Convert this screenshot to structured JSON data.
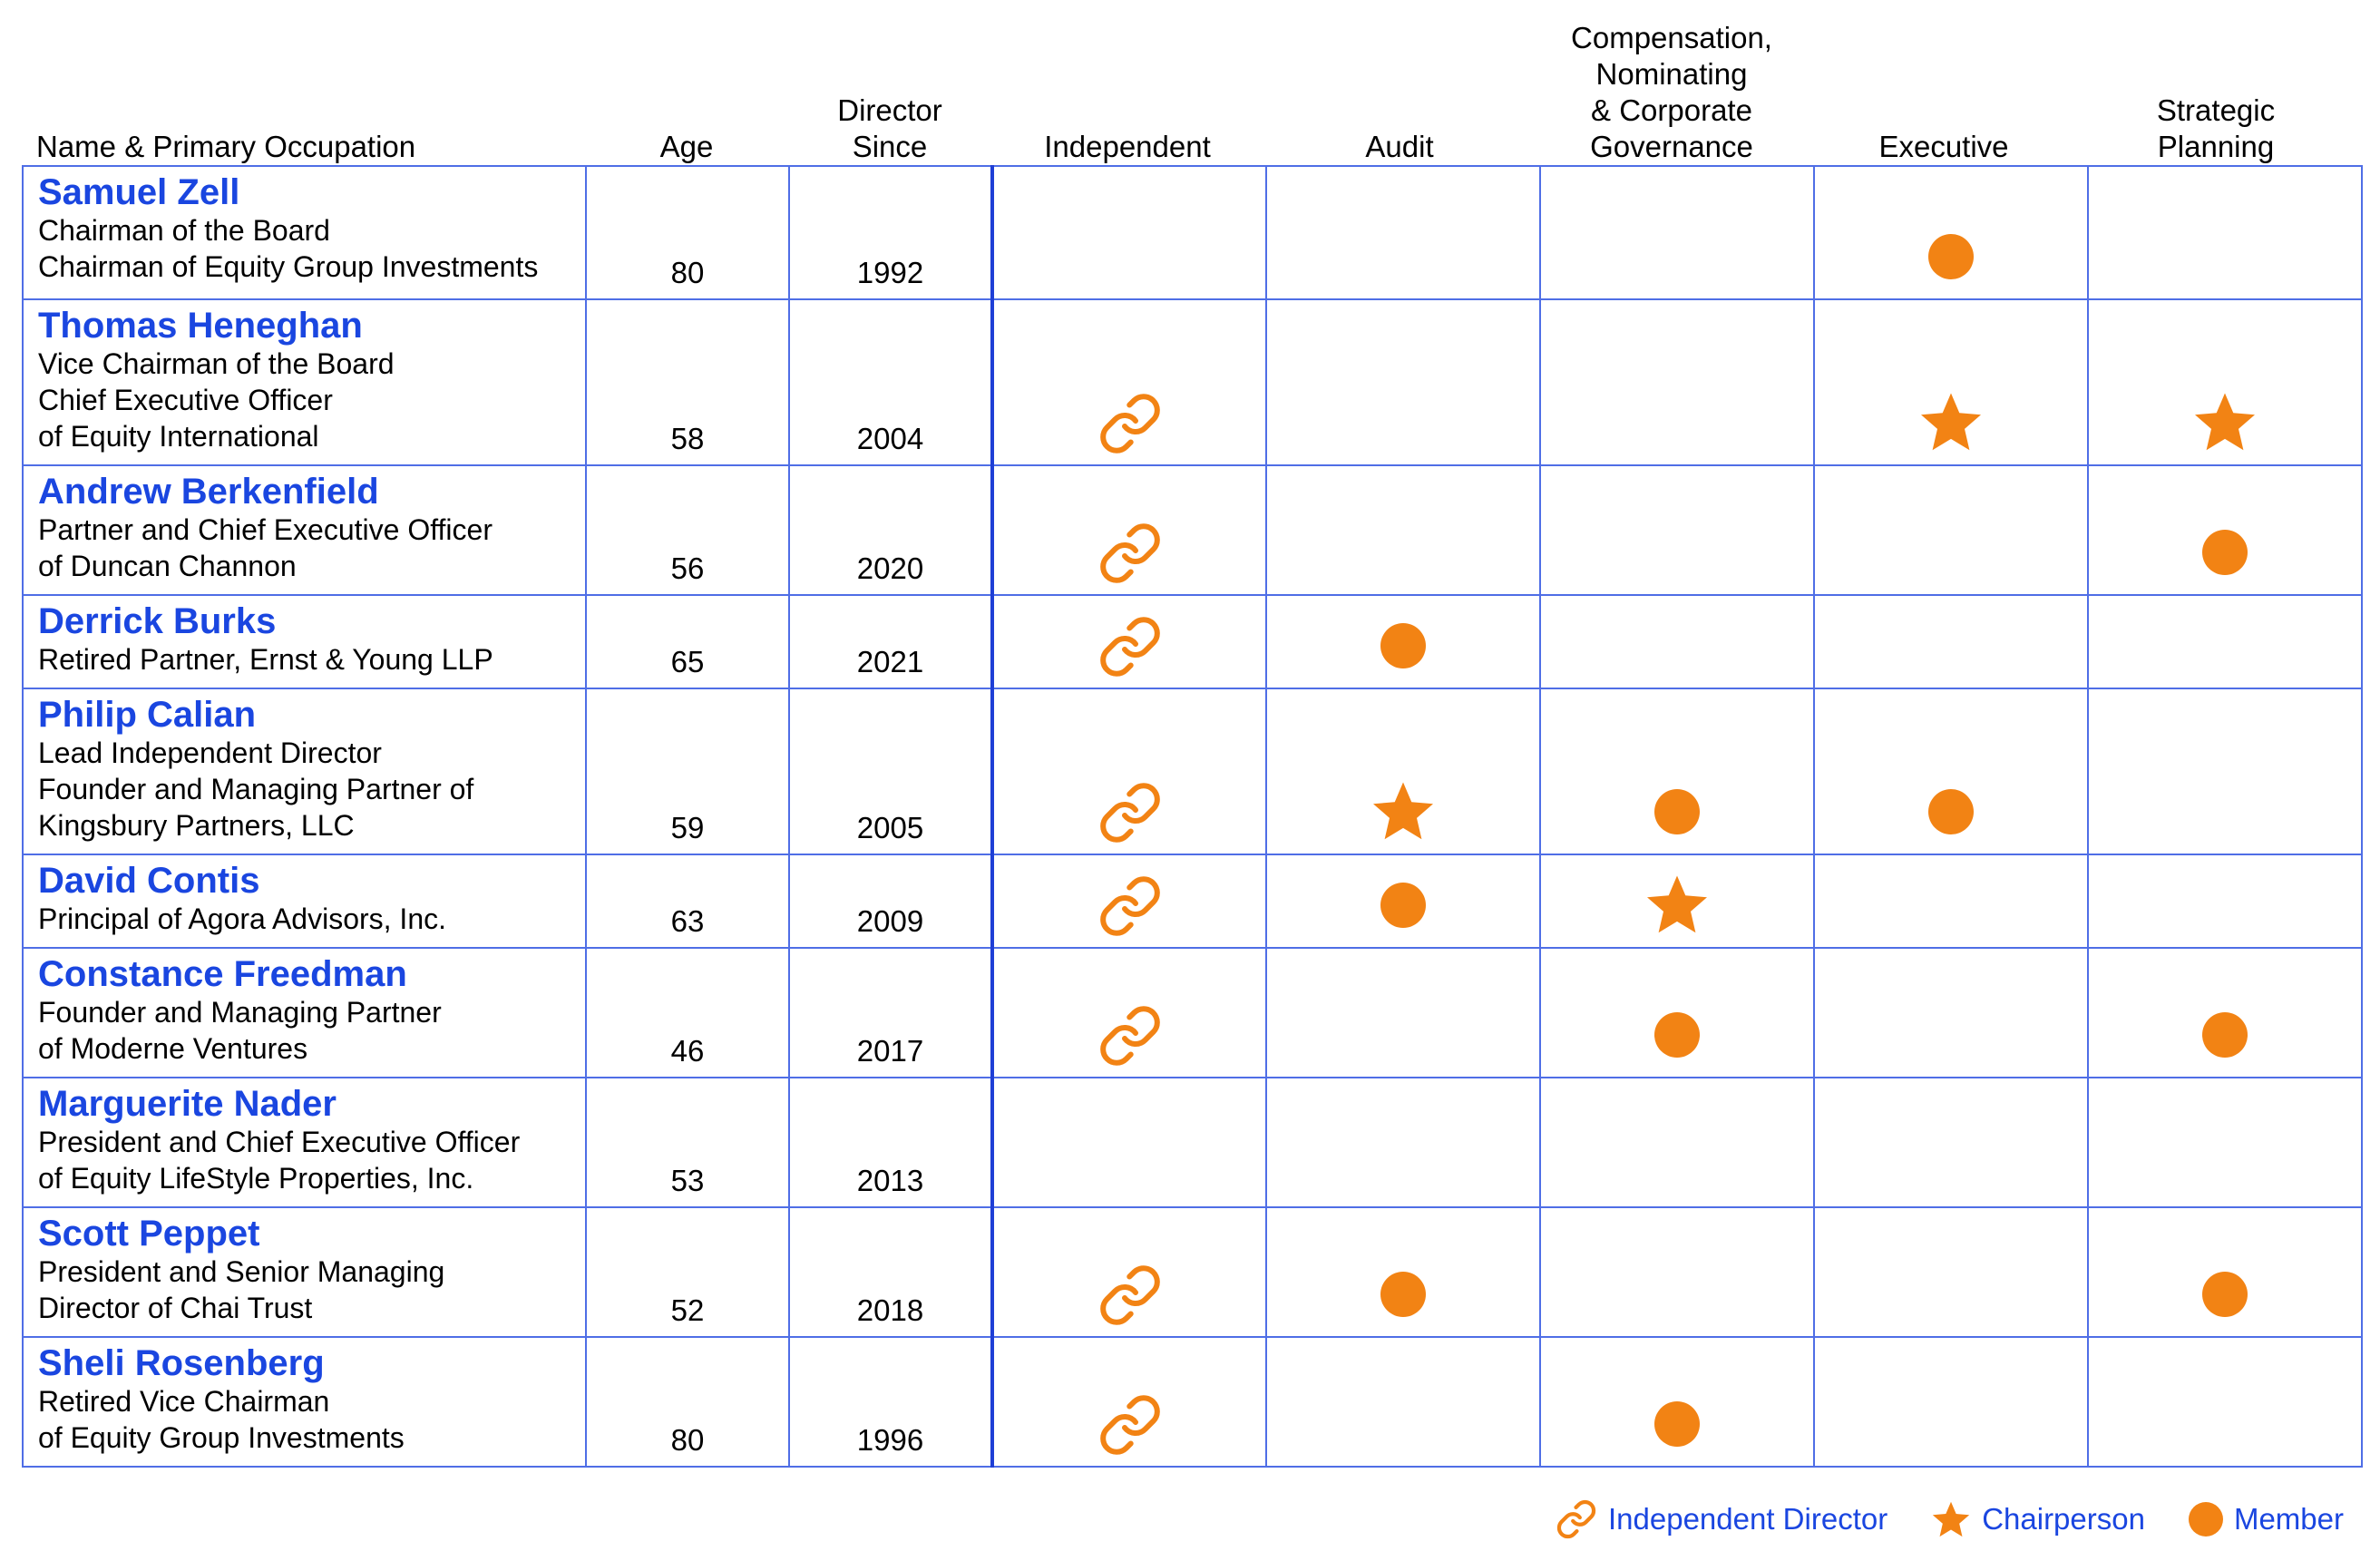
{
  "header": {
    "name": "Name & Primary Occupation",
    "age": "Age",
    "since": [
      "Director",
      "Since"
    ],
    "independent": "Independent",
    "audit": "Audit",
    "cng": [
      "Compensation,",
      "Nominating",
      "& Corporate",
      "Governance"
    ],
    "executive": "Executive",
    "strategic": [
      "Strategic",
      "Planning"
    ]
  },
  "directors": [
    {
      "name": "Samuel Zell",
      "occupation": [
        "Chairman of the Board",
        "Chairman of Equity Group Investments"
      ],
      "age": "80",
      "since": "1992",
      "independent": false,
      "audit": "",
      "cng": "",
      "executive": "member",
      "strategic": ""
    },
    {
      "name": "Thomas Heneghan",
      "occupation": [
        "Vice Chairman of the Board",
        "Chief Executive Officer",
        "of Equity International"
      ],
      "age": "58",
      "since": "2004",
      "independent": true,
      "audit": "",
      "cng": "",
      "executive": "chair",
      "strategic": "chair"
    },
    {
      "name": "Andrew Berkenfield",
      "occupation": [
        "Partner and Chief Executive Officer",
        "of Duncan Channon"
      ],
      "age": "56",
      "since": "2020",
      "independent": true,
      "audit": "",
      "cng": "",
      "executive": "",
      "strategic": "member"
    },
    {
      "name": "Derrick Burks",
      "occupation": [
        "Retired Partner, Ernst & Young LLP"
      ],
      "age": "65",
      "since": "2021",
      "independent": true,
      "audit": "member",
      "cng": "",
      "executive": "",
      "strategic": ""
    },
    {
      "name": "Philip Calian",
      "occupation": [
        "Lead Independent Director",
        "Founder and Managing Partner of",
        "Kingsbury Partners, LLC"
      ],
      "age": "59",
      "since": "2005",
      "independent": true,
      "audit": "chair",
      "cng": "member",
      "executive": "member",
      "strategic": ""
    },
    {
      "name": "David Contis",
      "occupation": [
        "Principal of Agora Advisors, Inc."
      ],
      "age": "63",
      "since": "2009",
      "independent": true,
      "audit": "member",
      "cng": "chair",
      "executive": "",
      "strategic": ""
    },
    {
      "name": "Constance Freedman",
      "occupation": [
        "Founder and Managing Partner",
        "of Moderne Ventures"
      ],
      "age": "46",
      "since": "2017",
      "independent": true,
      "audit": "",
      "cng": "member",
      "executive": "",
      "strategic": "member"
    },
    {
      "name": "Marguerite Nader",
      "occupation": [
        "President and Chief Executive Officer",
        "of Equity LifeStyle Properties, Inc."
      ],
      "age": "53",
      "since": "2013",
      "independent": false,
      "audit": "",
      "cng": "",
      "executive": "",
      "strategic": ""
    },
    {
      "name": "Scott Peppet",
      "occupation": [
        "President and Senior Managing",
        "Director of Chai Trust"
      ],
      "age": "52",
      "since": "2018",
      "independent": true,
      "audit": "member",
      "cng": "",
      "executive": "",
      "strategic": "member"
    },
    {
      "name": "Sheli Rosenberg",
      "occupation": [
        "Retired Vice Chairman",
        "of Equity Group Investments"
      ],
      "age": "80",
      "since": "1996",
      "independent": true,
      "audit": "",
      "cng": "member",
      "executive": "",
      "strategic": ""
    }
  ],
  "legend": {
    "independent": "Independent Director",
    "chair": "Chairperson",
    "member": "Member"
  },
  "colors": {
    "name": "#1a46e0",
    "mark": "#f28314",
    "grid": "#4f6ee6"
  },
  "icons": {
    "independent": "link-icon",
    "chair": "star-icon",
    "member": "circle-icon"
  }
}
